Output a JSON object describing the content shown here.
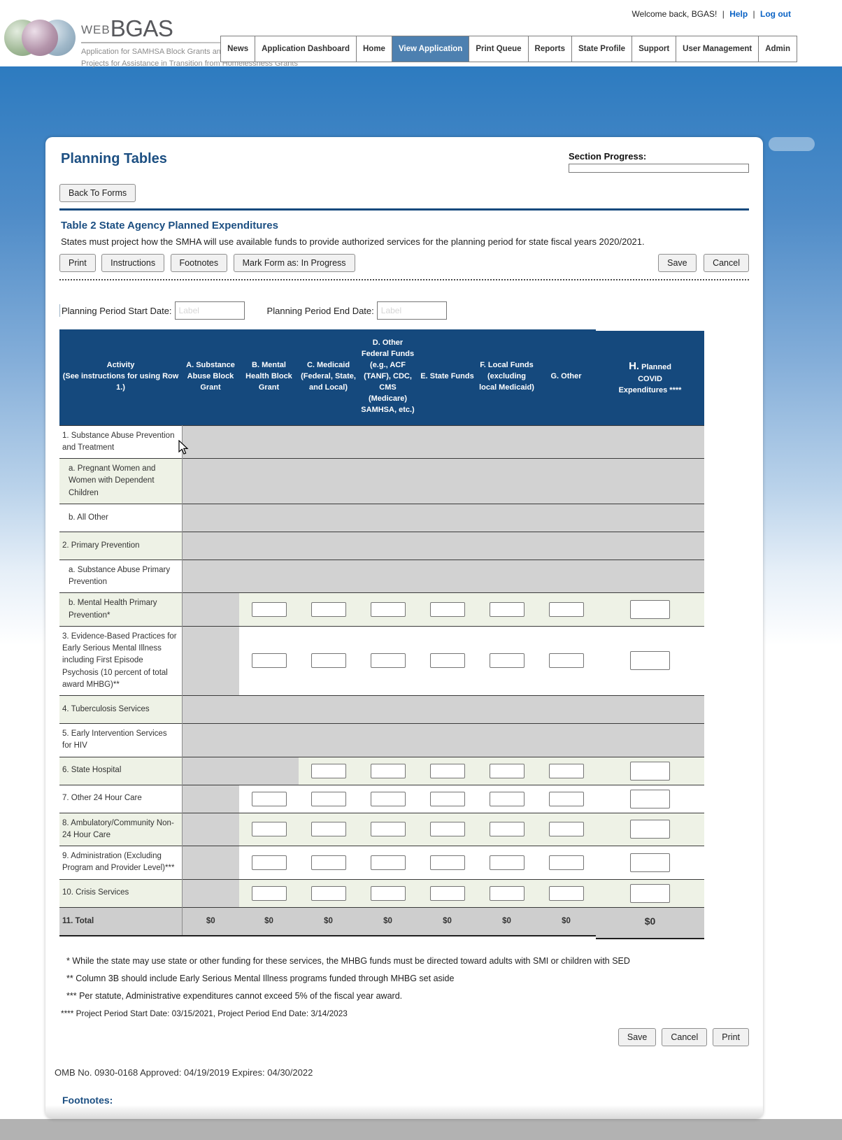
{
  "header": {
    "logo": {
      "web": "WEB",
      "bgas": "BGAS",
      "subtitle1": "Application for SAMHSA Block Grants and",
      "subtitle2": "Projects for Assistance in Transition from Homelessness Grants"
    },
    "welcome": {
      "text": "Welcome back, BGAS!",
      "sep": "|",
      "help": "Help",
      "logout": "Log out"
    },
    "nav": {
      "items": [
        {
          "label": "News",
          "active": false
        },
        {
          "label": "Application Dashboard",
          "active": false
        },
        {
          "label": "Home",
          "active": false
        },
        {
          "label": "View Application",
          "active": true
        },
        {
          "label": "Print Queue",
          "active": false
        },
        {
          "label": "Reports",
          "active": false
        },
        {
          "label": "State Profile",
          "active": false
        },
        {
          "label": "Support",
          "active": false
        },
        {
          "label": "User Management",
          "active": false
        },
        {
          "label": "Admin",
          "active": false
        }
      ]
    }
  },
  "page": {
    "title": "Planning Tables",
    "section_progress_label": "Section Progress:",
    "back_button": "Back To Forms"
  },
  "form": {
    "heading": "Table 2 State Agency Planned Expenditures",
    "description": "States must project how the SMHA will use available funds to provide authorized services for the planning period for state fiscal years 2020/2021.",
    "toolbar": {
      "print": "Print",
      "instructions": "Instructions",
      "footnotes": "Footnotes",
      "mark": "Mark Form as: In Progress",
      "save": "Save",
      "cancel": "Cancel"
    },
    "dates": {
      "start_label": "Planning Period Start Date:",
      "end_label": "Planning Period End Date:",
      "placeholder": "Label",
      "start_value": "",
      "end_value": ""
    }
  },
  "table": {
    "columns": [
      {
        "key": "activity",
        "label": "Activity\n(See instructions for using Row 1.)"
      },
      {
        "key": "A",
        "label": "A. Substance Abuse Block Grant"
      },
      {
        "key": "B",
        "label": "B. Mental Health Block Grant"
      },
      {
        "key": "C",
        "label": "C. Medicaid (Federal, State, and Local)"
      },
      {
        "key": "D",
        "label": "D. Other Federal Funds (e.g., ACF (TANF), CDC, CMS (Medicare) SAMHSA, etc.)"
      },
      {
        "key": "E",
        "label": "E. State Funds"
      },
      {
        "key": "F",
        "label": "F. Local Funds (excluding local Medicaid)"
      },
      {
        "key": "G",
        "label": "G. Other"
      },
      {
        "key": "H",
        "letter_big": "H.",
        "label": "Planned\nCOVID\nExpenditures ****"
      }
    ],
    "rows": [
      {
        "label": "1. Substance Abuse Prevention and Treatment",
        "indent": false,
        "gray": 8
      },
      {
        "label": "a. Pregnant Women and Women with Dependent Children",
        "indent": true,
        "gray": 8
      },
      {
        "label": "b. All Other",
        "indent": true,
        "gray": 8
      },
      {
        "label": "2. Primary Prevention",
        "indent": false,
        "gray": 8
      },
      {
        "label": "a. Substance Abuse Primary Prevention",
        "indent": true,
        "gray": 8
      },
      {
        "label": "b. Mental Health Primary Prevention*",
        "indent": true,
        "gray": 1
      },
      {
        "label": "3. Evidence-Based Practices for Early Serious Mental Illness including First Episode Psychosis (10 percent of total award MHBG)**",
        "indent": false,
        "gray": 1
      },
      {
        "label": "4. Tuberculosis Services",
        "indent": false,
        "gray": 8
      },
      {
        "label": "5. Early Intervention Services for HIV",
        "indent": false,
        "gray": 8
      },
      {
        "label": "6. State Hospital",
        "indent": false,
        "gray": 2
      },
      {
        "label": "7. Other 24 Hour Care",
        "indent": false,
        "gray": 1
      },
      {
        "label": "8. Ambulatory/Community Non-24 Hour Care",
        "indent": false,
        "gray": 1
      },
      {
        "label": "9. Administration (Excluding Program and Provider Level)***",
        "indent": false,
        "gray": 1
      },
      {
        "label": "10. Crisis Services",
        "indent": false,
        "gray": 1
      }
    ],
    "total": {
      "label": "11. Total",
      "values": [
        "$0",
        "$0",
        "$0",
        "$0",
        "$0",
        "$0",
        "$0",
        "$0"
      ]
    }
  },
  "footnotes": [
    "* While the state may use state or other funding for these services, the MHBG funds must be directed toward adults with SMI or children with SED",
    "** Column 3B should include Early Serious Mental Illness programs funded through MHBG set aside",
    "*** Per statute, Administrative expenditures cannot exceed 5% of the fiscal year award.",
    "**** Project Period Start Date: 03/15/2021, Project Period End Date: 3/14/2023"
  ],
  "bottom": {
    "save": "Save",
    "cancel": "Cancel",
    "print": "Print",
    "omb": "OMB No. 0930-0168 Approved: 04/19/2019 Expires: 04/30/2022",
    "footnotes_heading": "Footnotes:"
  },
  "colors": {
    "navy": "#15497d",
    "active_tab": "#4d80b0",
    "link_blue": "#0b63c5",
    "row_shade": "#eef2e6",
    "disabled_gray": "#d2d2d2",
    "total_gray": "#cecece"
  }
}
